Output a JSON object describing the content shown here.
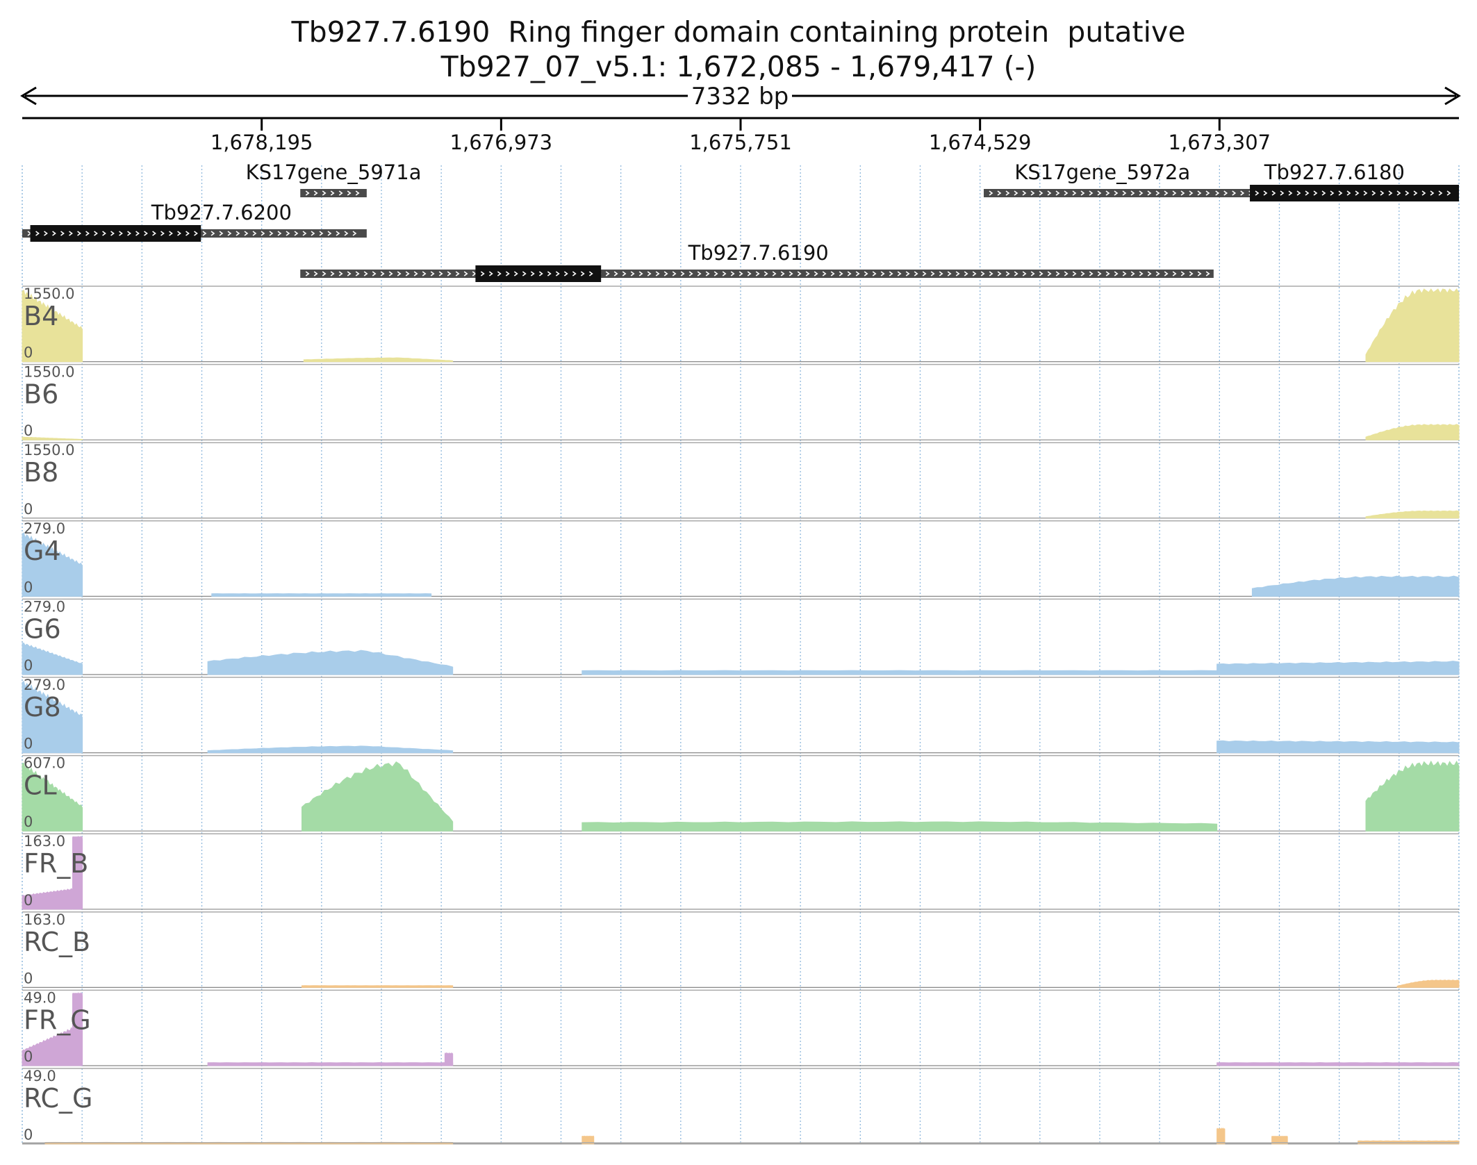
{
  "title": {
    "line1": "Tb927.7.6190  Ring finger domain containing protein  putative",
    "line2": "Tb927_07_v5.1: 1,672,085 - 1,679,417 (-)"
  },
  "region": {
    "chrom": "Tb927_07_v5.1",
    "start": 1672085,
    "end": 1679417,
    "strand": "-",
    "span_label": "7332 bp",
    "ticks": [
      {
        "pos": 1678195,
        "label": "1,678,195"
      },
      {
        "pos": 1676973,
        "label": "1,676,973"
      },
      {
        "pos": 1675751,
        "label": "1,675,751"
      },
      {
        "pos": 1674529,
        "label": "1,674,529"
      },
      {
        "pos": 1673307,
        "label": "1,673,307"
      }
    ]
  },
  "genes": [
    {
      "name": "KS17gene_5971a",
      "label": "KS17gene_5971a",
      "start": 1677659,
      "end": 1677998,
      "row": 0,
      "cds": []
    },
    {
      "name": "KS17gene_5972a",
      "label": "KS17gene_5972a",
      "start": 1673299,
      "end": 1674510,
      "row": 0,
      "cds": []
    },
    {
      "name": "Tb927.7.6180",
      "label": "Tb927.7.6180",
      "start": 1672085,
      "end": 1673355,
      "row": 0,
      "cds": [
        [
          1672085,
          1673152
        ]
      ]
    },
    {
      "name": "Tb927.7.6200",
      "label": "Tb927.7.6200",
      "start": 1677659,
      "end": 1679417,
      "row": 1,
      "cds": [
        [
          1678505,
          1679376
        ]
      ]
    },
    {
      "name": "Tb927.7.6190",
      "label": "Tb927.7.6190",
      "start": 1673337,
      "end": 1677998,
      "row": 2,
      "cds": [
        [
          1676463,
          1677104
        ]
      ]
    }
  ],
  "tracks": [
    {
      "name": "B4",
      "max_label": "1550.0",
      "min_label": "0",
      "max": 1550,
      "color": "#e8e29a",
      "segments": [
        {
          "from": 1679417,
          "to": 1679110,
          "v0": 1500,
          "v1": 700
        },
        {
          "from": 1677980,
          "to": 1677220,
          "v0": 40,
          "v1": 20,
          "mid": 80
        },
        {
          "from": 1672560,
          "to": 1672085,
          "v0": 150,
          "v1": 1520,
          "rise": true
        }
      ]
    },
    {
      "name": "B6",
      "max_label": "1550.0",
      "min_label": "0",
      "max": 1550,
      "color": "#e8e29a",
      "segments": [
        {
          "from": 1679417,
          "to": 1679110,
          "v0": 60,
          "v1": 10
        },
        {
          "from": 1672560,
          "to": 1672085,
          "v0": 60,
          "v1": 320,
          "rise": true
        }
      ]
    },
    {
      "name": "B8",
      "max_label": "1550.0",
      "min_label": "0",
      "max": 1550,
      "color": "#e8e29a",
      "segments": [
        {
          "from": 1672560,
          "to": 1672085,
          "v0": 30,
          "v1": 150,
          "rise": true
        }
      ]
    },
    {
      "name": "G4",
      "max_label": "279.0",
      "min_label": "0",
      "max": 279,
      "color": "#a9cdea",
      "segments": [
        {
          "from": 1679417,
          "to": 1679110,
          "v0": 240,
          "v1": 120
        },
        {
          "from": 1678450,
          "to": 1677330,
          "v0": 10,
          "v1": 10
        },
        {
          "from": 1673140,
          "to": 1672085,
          "v0": 30,
          "v1": 75,
          "rise": true
        }
      ]
    },
    {
      "name": "G6",
      "max_label": "279.0",
      "min_label": "0",
      "max": 279,
      "color": "#a9cdea",
      "segments": [
        {
          "from": 1679417,
          "to": 1679110,
          "v0": 120,
          "v1": 40
        },
        {
          "from": 1678470,
          "to": 1677220,
          "v0": 50,
          "v1": 30,
          "mid": 90
        },
        {
          "from": 1676560,
          "to": 1673320,
          "v0": 15,
          "v1": 15
        },
        {
          "from": 1673320,
          "to": 1672085,
          "v0": 40,
          "v1": 50
        }
      ]
    },
    {
      "name": "G8",
      "max_label": "279.0",
      "min_label": "0",
      "max": 279,
      "color": "#a9cdea",
      "segments": [
        {
          "from": 1679417,
          "to": 1679110,
          "v0": 270,
          "v1": 140
        },
        {
          "from": 1678470,
          "to": 1677220,
          "v0": 8,
          "v1": 8,
          "mid": 25
        },
        {
          "from": 1673320,
          "to": 1672085,
          "v0": 45,
          "v1": 40
        }
      ]
    },
    {
      "name": "CL",
      "max_label": "607.0",
      "min_label": "0",
      "max": 607,
      "color": "#a4dba6",
      "segments": [
        {
          "from": 1679417,
          "to": 1679110,
          "v0": 560,
          "v1": 200
        },
        {
          "from": 1677990,
          "to": 1677220,
          "v0": 200,
          "v1": 80,
          "mid": 560
        },
        {
          "from": 1676560,
          "to": 1673320,
          "v0": 70,
          "v1": 60,
          "mid": 75
        },
        {
          "from": 1672560,
          "to": 1672085,
          "v0": 250,
          "v1": 560,
          "rise": true
        }
      ]
    },
    {
      "name": "FR_B",
      "max_label": "163.0",
      "min_label": "0",
      "max": 163,
      "color": "#cfa6d6",
      "segments": [
        {
          "from": 1679417,
          "to": 1679160,
          "v0": 30,
          "v1": 45
        },
        {
          "from": 1679160,
          "to": 1679110,
          "v0": 160,
          "v1": 160
        }
      ]
    },
    {
      "name": "RC_B",
      "max_label": "163.0",
      "min_label": "0",
      "max": 163,
      "color": "#f4c68a",
      "segments": [
        {
          "from": 1677990,
          "to": 1677220,
          "v0": 4,
          "v1": 4
        },
        {
          "from": 1672400,
          "to": 1672085,
          "v0": 3,
          "v1": 16,
          "rise": true
        }
      ]
    },
    {
      "name": "FR_G",
      "max_label": "49.0",
      "min_label": "0",
      "max": 49,
      "color": "#cfa6d6",
      "segments": [
        {
          "from": 1679417,
          "to": 1679160,
          "v0": 10,
          "v1": 25
        },
        {
          "from": 1679160,
          "to": 1679110,
          "v0": 48,
          "v1": 48
        },
        {
          "from": 1678470,
          "to": 1677220,
          "v0": 2,
          "v1": 2
        },
        {
          "from": 1677260,
          "to": 1677220,
          "v0": 8,
          "v1": 8
        },
        {
          "from": 1673320,
          "to": 1672085,
          "v0": 2,
          "v1": 2
        }
      ]
    },
    {
      "name": "RC_G",
      "max_label": "49.0",
      "min_label": "0",
      "max": 49,
      "color": "#f4c68a",
      "segments": [
        {
          "from": 1679300,
          "to": 1677220,
          "v0": 1,
          "v1": 1
        },
        {
          "from": 1676560,
          "to": 1676500,
          "v0": 5,
          "v1": 5
        },
        {
          "from": 1673320,
          "to": 1673280,
          "v0": 10,
          "v1": 10
        },
        {
          "from": 1673040,
          "to": 1672960,
          "v0": 5,
          "v1": 5
        },
        {
          "from": 1672600,
          "to": 1672085,
          "v0": 2,
          "v1": 2
        }
      ]
    }
  ]
}
